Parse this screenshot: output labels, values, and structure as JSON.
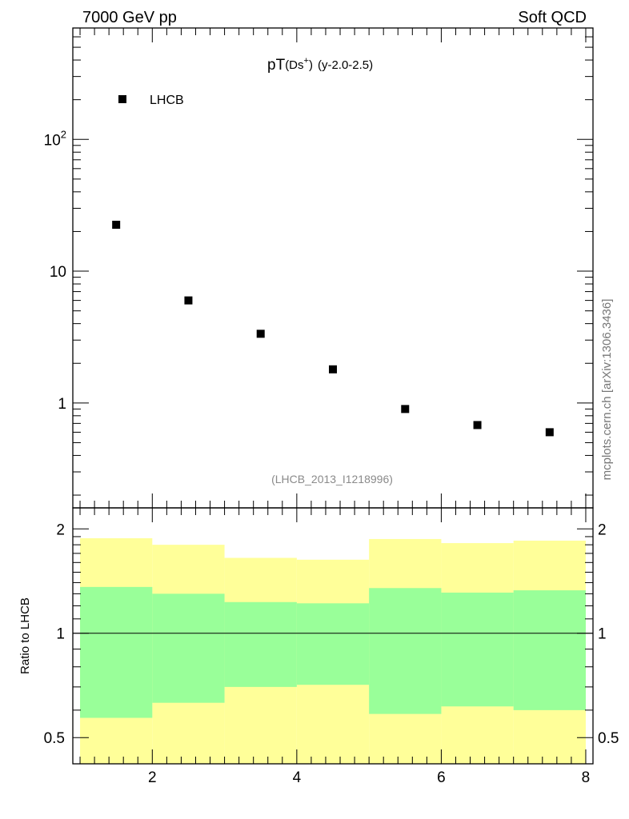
{
  "header": {
    "left": "7000 GeV pp",
    "right": "Soft QCD"
  },
  "watermark": "mcplots.cern.ch [arXiv:1306.3436]",
  "reference_label": "(LHCB_2013_I1218996)",
  "chart_data": [
    {
      "type": "scatter",
      "title_parts": {
        "main": "pT",
        "sub": "(Ds",
        "sup": "+",
        "close": ")",
        "tail": "(y-2.0-2.5)"
      },
      "title": "pT(Ds+) (y-2.0-2.5)",
      "legend": {
        "entries": [
          "LHCB"
        ],
        "placement": "top-left"
      },
      "y_scale": "log",
      "xlim": [
        0.9,
        8.1
      ],
      "ylim": [
        0.16,
        700
      ],
      "y_ticks": [
        {
          "value": 1,
          "label": "1"
        },
        {
          "value": 10,
          "label": "10"
        },
        {
          "value": 100,
          "label_base": "10",
          "label_exp": "2"
        }
      ],
      "series": [
        {
          "name": "LHCB",
          "marker": "square",
          "color": "#000000",
          "x": [
            1.5,
            2.5,
            3.5,
            4.5,
            5.5,
            6.5,
            7.5
          ],
          "y": [
            22.5,
            6.0,
            3.35,
            1.8,
            0.9,
            0.68,
            0.6
          ]
        }
      ]
    },
    {
      "type": "area",
      "ylabel": "Ratio to LHCB",
      "y_scale": "log",
      "xlim": [
        0.9,
        8.1
      ],
      "ylim": [
        0.42,
        2.3
      ],
      "x_ticks": [
        {
          "value": 2,
          "label": "2"
        },
        {
          "value": 4,
          "label": "4"
        },
        {
          "value": 6,
          "label": "6"
        },
        {
          "value": 8,
          "label": "8"
        }
      ],
      "y_ticks": [
        {
          "value": 0.5,
          "label": "0.5"
        },
        {
          "value": 1,
          "label": "1"
        },
        {
          "value": 2,
          "label": "2"
        }
      ],
      "reference_line": 1,
      "bins": [
        [
          1,
          2
        ],
        [
          2,
          3
        ],
        [
          3,
          4
        ],
        [
          4,
          5
        ],
        [
          5,
          6
        ],
        [
          6,
          7
        ],
        [
          7,
          8
        ]
      ],
      "bands": [
        {
          "color": "#ffff99",
          "low": [
            0.42,
            0.42,
            0.42,
            0.42,
            0.42,
            0.42,
            0.42
          ],
          "high": [
            1.88,
            1.8,
            1.65,
            1.63,
            1.87,
            1.82,
            1.85
          ]
        },
        {
          "color": "#99ff99",
          "low": [
            0.57,
            0.63,
            0.7,
            0.71,
            0.585,
            0.615,
            0.6
          ],
          "high": [
            1.36,
            1.3,
            1.23,
            1.22,
            1.35,
            1.31,
            1.33
          ]
        }
      ]
    }
  ]
}
